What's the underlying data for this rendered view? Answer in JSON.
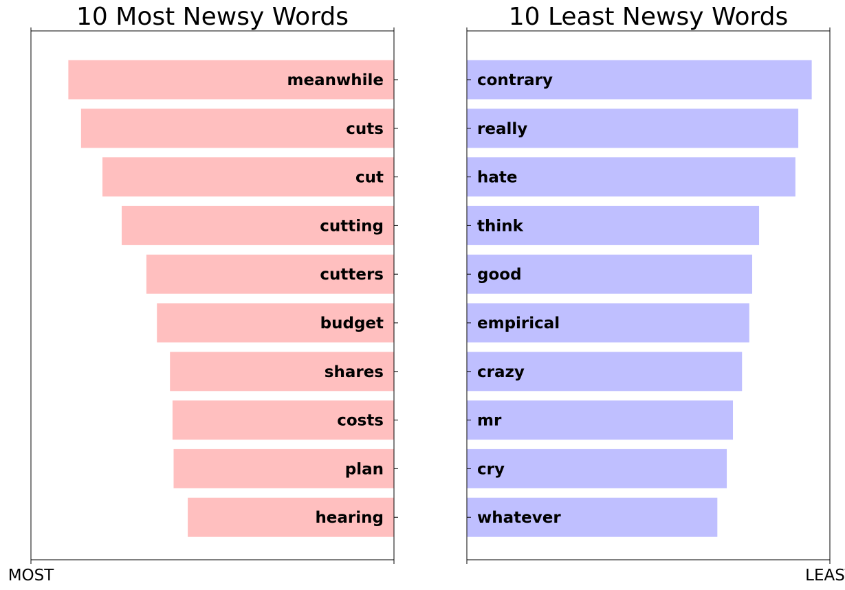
{
  "chart_data": [
    {
      "type": "bar",
      "orientation": "horizontal",
      "title": "10 Most Newsy Words",
      "categories": [
        "meanwhile",
        "cuts",
        "cut",
        "cutting",
        "cutters",
        "budget",
        "shares",
        "costs",
        "plan",
        "hearing"
      ],
      "values": [
        0.897,
        0.862,
        0.803,
        0.75,
        0.682,
        0.653,
        0.617,
        0.61,
        0.607,
        0.568
      ],
      "xlim": [
        1.0,
        0.0
      ],
      "x_axis_tick_labels": [
        "MOST",
        ""
      ],
      "bar_color": "#ffbfbf",
      "grid": false,
      "legend": "none"
    },
    {
      "type": "bar",
      "orientation": "horizontal",
      "title": "10 Least Newsy Words",
      "categories": [
        "contrary",
        "really",
        "hate",
        "think",
        "good",
        "empirical",
        "crazy",
        "mr",
        "cry",
        "whatever"
      ],
      "values": [
        0.95,
        0.913,
        0.905,
        0.805,
        0.786,
        0.778,
        0.758,
        0.733,
        0.716,
        0.69
      ],
      "xlim": [
        0.0,
        1.0
      ],
      "x_axis_tick_labels": [
        "",
        "LEAST"
      ],
      "bar_color": "#bfbfff",
      "grid": false,
      "legend": "none"
    }
  ]
}
